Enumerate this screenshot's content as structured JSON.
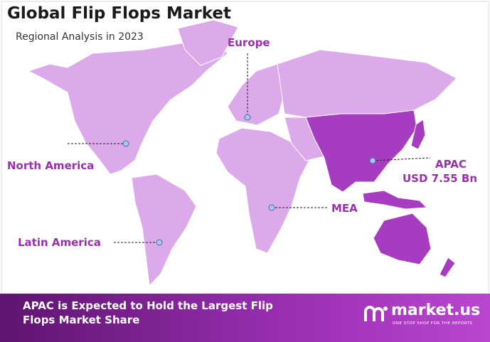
{
  "header": {
    "title": "Global Flip Flops Market",
    "subtitle": "Regional Analysis in 2023"
  },
  "regions": [
    {
      "label": "Europe"
    },
    {
      "label": "North America"
    },
    {
      "label": "Latin America"
    },
    {
      "label": "MEA"
    },
    {
      "label": "APAC",
      "value_label": "USD 7.55 Bn"
    }
  ],
  "footer": {
    "text": "APAC is Expected to Hold the Largest Flip Flops Market Share",
    "logo": "market.us",
    "tagline": "ONE STOP SHOP FOR THE REPORTS"
  }
}
